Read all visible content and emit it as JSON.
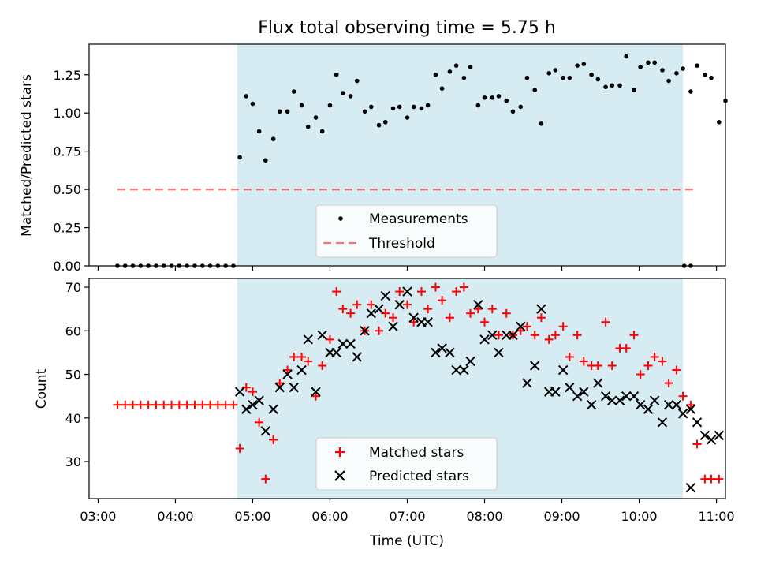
{
  "title": "Flux total observing time = 5.75 h",
  "colors": {
    "shade": "#add8e6",
    "threshold": "#ff0000",
    "measurement": "#000000",
    "matched": "#ff0000",
    "predicted": "#000000"
  },
  "chart_data": [
    {
      "type": "scatter",
      "ylabel": "Matched/Predicted stars",
      "ylim": [
        0,
        1.45
      ],
      "xlim": [
        "02:53",
        "11:07"
      ],
      "yticks": [
        "0.00",
        "0.25",
        "0.50",
        "0.75",
        "1.00",
        "1.25"
      ],
      "shaded_interval": [
        "04:48",
        "10:34"
      ],
      "legend": {
        "placement": "lower-center",
        "entries": [
          "Measurements",
          "Threshold"
        ]
      },
      "threshold": {
        "name": "Threshold",
        "y": 0.5,
        "x": [
          "03:15",
          "10:45"
        ]
      },
      "series": [
        {
          "name": "Measurements",
          "points": [
            [
              "03:15",
              0
            ],
            [
              "03:21",
              0
            ],
            [
              "03:27",
              0
            ],
            [
              "03:33",
              0
            ],
            [
              "03:39",
              0
            ],
            [
              "03:45",
              0
            ],
            [
              "03:51",
              0
            ],
            [
              "03:57",
              0
            ],
            [
              "04:03",
              0
            ],
            [
              "04:09",
              0
            ],
            [
              "04:15",
              0
            ],
            [
              "04:21",
              0
            ],
            [
              "04:27",
              0
            ],
            [
              "04:33",
              0
            ],
            [
              "04:39",
              0
            ],
            [
              "04:45",
              0
            ],
            [
              "04:50",
              0.71
            ],
            [
              "04:55",
              1.11
            ],
            [
              "05:00",
              1.06
            ],
            [
              "05:05",
              0.88
            ],
            [
              "05:10",
              0.69
            ],
            [
              "05:16",
              0.83
            ],
            [
              "05:21",
              1.01
            ],
            [
              "05:27",
              1.01
            ],
            [
              "05:32",
              1.14
            ],
            [
              "05:38",
              1.05
            ],
            [
              "05:43",
              0.91
            ],
            [
              "05:49",
              0.97
            ],
            [
              "05:54",
              0.88
            ],
            [
              "06:00",
              1.05
            ],
            [
              "06:05",
              1.25
            ],
            [
              "06:10",
              1.13
            ],
            [
              "06:16",
              1.11
            ],
            [
              "06:21",
              1.21
            ],
            [
              "06:27",
              1.01
            ],
            [
              "06:32",
              1.04
            ],
            [
              "06:38",
              0.92
            ],
            [
              "06:43",
              0.94
            ],
            [
              "06:49",
              1.03
            ],
            [
              "06:54",
              1.04
            ],
            [
              "07:00",
              0.97
            ],
            [
              "07:05",
              1.04
            ],
            [
              "07:11",
              1.03
            ],
            [
              "07:16",
              1.05
            ],
            [
              "07:22",
              1.25
            ],
            [
              "07:27",
              1.16
            ],
            [
              "07:33",
              1.27
            ],
            [
              "07:38",
              1.31
            ],
            [
              "07:44",
              1.23
            ],
            [
              "07:49",
              1.3
            ],
            [
              "07:55",
              1.05
            ],
            [
              "08:00",
              1.1
            ],
            [
              "08:06",
              1.1
            ],
            [
              "08:11",
              1.11
            ],
            [
              "08:17",
              1.08
            ],
            [
              "08:22",
              1.01
            ],
            [
              "08:28",
              1.04
            ],
            [
              "08:33",
              1.23
            ],
            [
              "08:39",
              1.15
            ],
            [
              "08:44",
              0.93
            ],
            [
              "08:50",
              1.26
            ],
            [
              "08:55",
              1.28
            ],
            [
              "09:01",
              1.23
            ],
            [
              "09:06",
              1.23
            ],
            [
              "09:12",
              1.31
            ],
            [
              "09:17",
              1.32
            ],
            [
              "09:23",
              1.25
            ],
            [
              "09:28",
              1.22
            ],
            [
              "09:34",
              1.17
            ],
            [
              "09:39",
              1.18
            ],
            [
              "09:45",
              1.18
            ],
            [
              "09:50",
              1.37
            ],
            [
              "09:56",
              1.15
            ],
            [
              "10:01",
              1.3
            ],
            [
              "10:07",
              1.33
            ],
            [
              "10:12",
              1.33
            ],
            [
              "10:18",
              1.28
            ],
            [
              "10:23",
              1.21
            ],
            [
              "10:29",
              1.26
            ],
            [
              "10:34",
              1.29
            ],
            [
              "10:40",
              1.14
            ],
            [
              "10:45",
              1.31
            ],
            [
              "10:51",
              1.25
            ],
            [
              "10:56",
              1.23
            ],
            [
              "11:02",
              0.94
            ],
            [
              "11:07",
              1.08
            ],
            [
              "10:35",
              0
            ],
            [
              "10:40",
              0
            ]
          ]
        }
      ]
    },
    {
      "type": "scatter",
      "ylabel": "Count",
      "xlabel": "Time (UTC)",
      "ylim": [
        21.5,
        72
      ],
      "xlim": [
        "02:53",
        "11:07"
      ],
      "yticks": [
        "30",
        "40",
        "50",
        "60",
        "70"
      ],
      "xticks": [
        "03:00",
        "04:00",
        "05:00",
        "06:00",
        "07:00",
        "08:00",
        "09:00",
        "10:00",
        "11:00"
      ],
      "shaded_interval": [
        "04:48",
        "10:34"
      ],
      "legend": {
        "placement": "lower-center",
        "entries": [
          "Matched stars",
          "Predicted stars"
        ]
      },
      "series": [
        {
          "name": "Matched stars",
          "marker": "plus",
          "points": [
            [
              "03:15",
              43
            ],
            [
              "03:21",
              43
            ],
            [
              "03:27",
              43
            ],
            [
              "03:33",
              43
            ],
            [
              "03:39",
              43
            ],
            [
              "03:45",
              43
            ],
            [
              "03:51",
              43
            ],
            [
              "03:57",
              43
            ],
            [
              "04:03",
              43
            ],
            [
              "04:09",
              43
            ],
            [
              "04:15",
              43
            ],
            [
              "04:21",
              43
            ],
            [
              "04:27",
              43
            ],
            [
              "04:33",
              43
            ],
            [
              "04:39",
              43
            ],
            [
              "04:45",
              43
            ],
            [
              "04:50",
              33
            ],
            [
              "04:55",
              47
            ],
            [
              "05:00",
              46
            ],
            [
              "05:05",
              39
            ],
            [
              "05:10",
              26
            ],
            [
              "05:16",
              35
            ],
            [
              "05:21",
              48
            ],
            [
              "05:27",
              51
            ],
            [
              "05:32",
              54
            ],
            [
              "05:38",
              54
            ],
            [
              "05:43",
              53
            ],
            [
              "05:49",
              45
            ],
            [
              "05:54",
              52
            ],
            [
              "06:00",
              58
            ],
            [
              "06:05",
              69
            ],
            [
              "06:10",
              65
            ],
            [
              "06:16",
              64
            ],
            [
              "06:21",
              66
            ],
            [
              "06:27",
              60
            ],
            [
              "06:32",
              66
            ],
            [
              "06:38",
              60
            ],
            [
              "06:43",
              64
            ],
            [
              "06:49",
              63
            ],
            [
              "06:54",
              69
            ],
            [
              "07:00",
              66
            ],
            [
              "07:05",
              62
            ],
            [
              "07:11",
              69
            ],
            [
              "07:16",
              65
            ],
            [
              "07:22",
              70
            ],
            [
              "07:27",
              67
            ],
            [
              "07:33",
              63
            ],
            [
              "07:38",
              69
            ],
            [
              "07:44",
              70
            ],
            [
              "07:49",
              64
            ],
            [
              "07:55",
              65
            ],
            [
              "08:00",
              62
            ],
            [
              "08:06",
              65
            ],
            [
              "08:11",
              59
            ],
            [
              "08:17",
              64
            ],
            [
              "08:22",
              59
            ],
            [
              "08:28",
              60
            ],
            [
              "08:33",
              61
            ],
            [
              "08:39",
              59
            ],
            [
              "08:44",
              63
            ],
            [
              "08:50",
              58
            ],
            [
              "08:55",
              59
            ],
            [
              "09:01",
              61
            ],
            [
              "09:06",
              54
            ],
            [
              "09:12",
              59
            ],
            [
              "09:17",
              53
            ],
            [
              "09:23",
              52
            ],
            [
              "09:28",
              52
            ],
            [
              "09:34",
              62
            ],
            [
              "09:39",
              52
            ],
            [
              "09:45",
              56
            ],
            [
              "09:50",
              56
            ],
            [
              "09:56",
              59
            ],
            [
              "10:01",
              50
            ],
            [
              "10:07",
              52
            ],
            [
              "10:12",
              54
            ],
            [
              "10:18",
              53
            ],
            [
              "10:23",
              48
            ],
            [
              "10:29",
              51
            ],
            [
              "10:34",
              45
            ],
            [
              "10:40",
              43
            ],
            [
              "10:45",
              34
            ],
            [
              "10:51",
              26
            ],
            [
              "10:56",
              26
            ],
            [
              "11:02",
              26
            ]
          ]
        },
        {
          "name": "Predicted stars",
          "marker": "x",
          "points": [
            [
              "04:50",
              46
            ],
            [
              "04:55",
              42
            ],
            [
              "05:00",
              43
            ],
            [
              "05:05",
              44
            ],
            [
              "05:10",
              37
            ],
            [
              "05:16",
              42
            ],
            [
              "05:21",
              47
            ],
            [
              "05:27",
              50
            ],
            [
              "05:32",
              47
            ],
            [
              "05:38",
              51
            ],
            [
              "05:43",
              58
            ],
            [
              "05:49",
              46
            ],
            [
              "05:54",
              59
            ],
            [
              "06:00",
              55
            ],
            [
              "06:05",
              55
            ],
            [
              "06:10",
              57
            ],
            [
              "06:16",
              57
            ],
            [
              "06:21",
              54
            ],
            [
              "06:27",
              60
            ],
            [
              "06:32",
              64
            ],
            [
              "06:38",
              65
            ],
            [
              "06:43",
              68
            ],
            [
              "06:49",
              61
            ],
            [
              "06:54",
              66
            ],
            [
              "07:00",
              69
            ],
            [
              "07:05",
              63
            ],
            [
              "07:11",
              62
            ],
            [
              "07:16",
              62
            ],
            [
              "07:22",
              55
            ],
            [
              "07:27",
              56
            ],
            [
              "07:33",
              55
            ],
            [
              "07:38",
              51
            ],
            [
              "07:44",
              51
            ],
            [
              "07:49",
              53
            ],
            [
              "07:55",
              66
            ],
            [
              "08:00",
              58
            ],
            [
              "08:06",
              59
            ],
            [
              "08:11",
              55
            ],
            [
              "08:17",
              59
            ],
            [
              "08:22",
              59
            ],
            [
              "08:28",
              61
            ],
            [
              "08:33",
              48
            ],
            [
              "08:39",
              52
            ],
            [
              "08:44",
              65
            ],
            [
              "08:50",
              46
            ],
            [
              "08:55",
              46
            ],
            [
              "09:01",
              51
            ],
            [
              "09:06",
              47
            ],
            [
              "09:12",
              45
            ],
            [
              "09:17",
              46
            ],
            [
              "09:23",
              43
            ],
            [
              "09:28",
              48
            ],
            [
              "09:34",
              45
            ],
            [
              "09:39",
              44
            ],
            [
              "09:45",
              44
            ],
            [
              "09:50",
              45
            ],
            [
              "09:56",
              45
            ],
            [
              "10:01",
              43
            ],
            [
              "10:07",
              42
            ],
            [
              "10:12",
              44
            ],
            [
              "10:18",
              39
            ],
            [
              "10:23",
              43
            ],
            [
              "10:29",
              43
            ],
            [
              "10:34",
              41
            ],
            [
              "10:40",
              42
            ],
            [
              "10:45",
              39
            ],
            [
              "10:51",
              36
            ],
            [
              "10:56",
              35
            ],
            [
              "11:02",
              36
            ],
            [
              "10:40",
              24
            ]
          ]
        }
      ]
    }
  ]
}
